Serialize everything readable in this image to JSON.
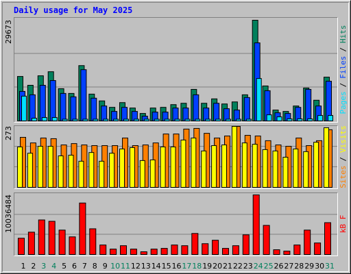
{
  "chart_data": [
    {
      "type": "bar",
      "title": "Daily usage for May 2025",
      "ylim": [
        0,
        29673
      ],
      "yticks": [
        29673
      ],
      "grid": true,
      "legend_separator": "/",
      "series": [
        {
          "name": "Hits",
          "color": "#00805c",
          "values": [
            13100,
            10500,
            13300,
            14500,
            9500,
            8100,
            16300,
            7900,
            5900,
            4000,
            5400,
            3800,
            2200,
            3800,
            4000,
            4800,
            5200,
            9300,
            5200,
            6500,
            5000,
            5600,
            7700,
            29673,
            10300,
            3200,
            2800,
            4400,
            9700,
            6100,
            12900
          ]
        },
        {
          "name": "Files",
          "color": "#0040ff",
          "values": [
            8700,
            7700,
            10500,
            11900,
            8100,
            7100,
            15100,
            6700,
            4400,
            2800,
            4000,
            2800,
            1400,
            2600,
            2600,
            3800,
            3800,
            7700,
            3800,
            5200,
            3600,
            3200,
            6900,
            23000,
            8900,
            2400,
            2200,
            4000,
            9300,
            4400,
            11700
          ]
        },
        {
          "name": "Pages",
          "color": "#00e0ff",
          "values": [
            7300,
            800,
            1000,
            1000,
            500,
            500,
            500,
            500,
            500,
            500,
            500,
            500,
            500,
            500,
            500,
            500,
            500,
            500,
            500,
            500,
            500,
            500,
            500,
            12500,
            1800,
            1200,
            600,
            600,
            600,
            1600,
            1600
          ]
        }
      ]
    },
    {
      "type": "bar",
      "ylim": [
        0,
        273
      ],
      "yticks": [
        273
      ],
      "grid": true,
      "legend_separator": "/",
      "series": [
        {
          "name": "Visits",
          "color": "#ffff00",
          "values": [
            181,
            153,
            184,
            184,
            141,
            144,
            117,
            156,
            117,
            153,
            172,
            178,
            120,
            123,
            181,
            181,
            212,
            221,
            163,
            187,
            190,
            273,
            199,
            193,
            169,
            163,
            135,
            172,
            160,
            202,
            267
          ]
        },
        {
          "name": "Sites",
          "color": "#ff8000",
          "values": [
            224,
            199,
            221,
            218,
            190,
            196,
            190,
            187,
            187,
            187,
            221,
            187,
            190,
            199,
            239,
            239,
            261,
            264,
            242,
            221,
            230,
            273,
            233,
            230,
            209,
            190,
            184,
            221,
            187,
            209,
            258
          ]
        }
      ]
    },
    {
      "type": "bar",
      "ylim": [
        0,
        10036484
      ],
      "yticks": [
        10036484
      ],
      "grid": true,
      "categories": [
        "1",
        "2",
        "3",
        "4",
        "5",
        "6",
        "7",
        "8",
        "9",
        "10",
        "11",
        "12",
        "13",
        "14",
        "15",
        "16",
        "17",
        "18",
        "19",
        "20",
        "21",
        "22",
        "23",
        "24",
        "25",
        "26",
        "27",
        "28",
        "29",
        "30",
        "31"
      ],
      "category_colors": [
        "#000000",
        "#000000",
        "#00805c",
        "#00805c",
        "#000000",
        "#000000",
        "#000000",
        "#000000",
        "#000000",
        "#00805c",
        "#00805c",
        "#000000",
        "#000000",
        "#000000",
        "#000000",
        "#000000",
        "#00805c",
        "#00805c",
        "#000000",
        "#000000",
        "#000000",
        "#000000",
        "#000000",
        "#00805c",
        "#00805c",
        "#000000",
        "#000000",
        "#000000",
        "#000000",
        "#000000",
        "#00805c"
      ],
      "series": [
        {
          "name": "kB F",
          "color": "#ff0000",
          "values": [
            2740000,
            3760000,
            5820000,
            5590000,
            4110000,
            2970000,
            8670000,
            4330000,
            1600000,
            910000,
            1480000,
            910000,
            460000,
            910000,
            1030000,
            1600000,
            1480000,
            3540000,
            1820000,
            2400000,
            1030000,
            1480000,
            3310000,
            10036484,
            4900000,
            800000,
            570000,
            1600000,
            4110000,
            1940000,
            5360000
          ]
        }
      ]
    }
  ]
}
